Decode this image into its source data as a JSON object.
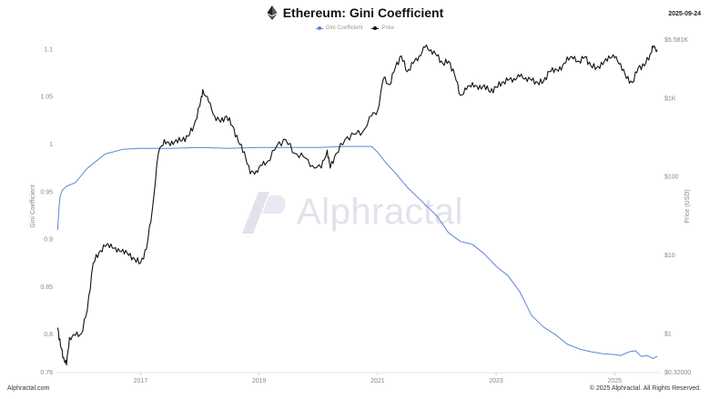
{
  "header": {
    "title": "Ethereum: Gini Coefficient",
    "date": "2025-09-24"
  },
  "legend": {
    "gini_label": "Gini Coefficient",
    "price_label": "Price"
  },
  "watermark": {
    "text": "Alphractal"
  },
  "footer": {
    "left": "Alphractal.com",
    "right": "© 2025 Alphractal. All Rights Reserved."
  },
  "colors": {
    "gini": "#5b86d6",
    "price": "#111111",
    "axis_text": "#888888"
  },
  "icons": {
    "title_icon": "ethereum-icon",
    "watermark_icon": "alphractal-logo-icon"
  },
  "chart_data": {
    "type": "line",
    "title": "Ethereum: Gini Coefficient",
    "x_ticks": [
      "2017",
      "2019",
      "2021",
      "2023",
      "2025"
    ],
    "x_range": [
      "2015-08",
      "2025-09"
    ],
    "y_left": {
      "label": "Gini Coefficient",
      "ticks": [
        "0.76",
        "0.8",
        "0.85",
        "0.9",
        "0.95",
        "1",
        "1.05",
        "1.1"
      ],
      "range": [
        0.76,
        1.11
      ]
    },
    "y_right": {
      "label": "Price (USD)",
      "scale": "log",
      "ticks": [
        "$0.32000",
        "$1",
        "$10",
        "$100",
        "$1K",
        "$5.581K"
      ],
      "range": [
        0.32,
        5581
      ]
    },
    "grid": false,
    "series": [
      {
        "name": "Gini Coefficient",
        "axis": "left",
        "x": [
          2015.6,
          2015.62,
          2015.64,
          2015.68,
          2015.75,
          2015.9,
          2016.1,
          2016.4,
          2016.7,
          2017.0,
          2017.5,
          2018.0,
          2018.5,
          2019.0,
          2019.5,
          2020.0,
          2020.5,
          2020.9,
          2021.0,
          2021.15,
          2021.3,
          2021.5,
          2021.75,
          2022.0,
          2022.2,
          2022.4,
          2022.6,
          2022.8,
          2023.0,
          2023.2,
          2023.4,
          2023.6,
          2023.8,
          2024.0,
          2024.2,
          2024.4,
          2024.6,
          2024.8,
          2025.0,
          2025.1,
          2025.25,
          2025.35,
          2025.45,
          2025.55,
          2025.65,
          2025.72
        ],
        "values": [
          0.91,
          0.93,
          0.945,
          0.952,
          0.956,
          0.96,
          0.975,
          0.99,
          0.995,
          0.996,
          0.996,
          0.997,
          0.996,
          0.997,
          0.997,
          0.997,
          0.998,
          0.998,
          0.992,
          0.98,
          0.97,
          0.955,
          0.94,
          0.925,
          0.907,
          0.898,
          0.895,
          0.885,
          0.872,
          0.862,
          0.845,
          0.82,
          0.808,
          0.8,
          0.79,
          0.785,
          0.782,
          0.78,
          0.779,
          0.778,
          0.782,
          0.783,
          0.777,
          0.778,
          0.775,
          0.777
        ]
      },
      {
        "name": "Price",
        "axis": "right",
        "x": [
          2015.6,
          2015.65,
          2015.7,
          2015.75,
          2015.8,
          2015.9,
          2016.0,
          2016.1,
          2016.2,
          2016.3,
          2016.4,
          2016.5,
          2016.6,
          2016.7,
          2016.8,
          2016.9,
          2017.0,
          2017.1,
          2017.2,
          2017.3,
          2017.4,
          2017.5,
          2017.6,
          2017.7,
          2017.8,
          2017.9,
          2018.0,
          2018.05,
          2018.15,
          2018.25,
          2018.35,
          2018.45,
          2018.55,
          2018.65,
          2018.75,
          2018.85,
          2018.95,
          2019.05,
          2019.15,
          2019.3,
          2019.45,
          2019.6,
          2019.75,
          2019.9,
          2020.05,
          2020.15,
          2020.2,
          2020.3,
          2020.45,
          2020.6,
          2020.75,
          2020.9,
          2021.0,
          2021.1,
          2021.2,
          2021.3,
          2021.4,
          2021.5,
          2021.6,
          2021.7,
          2021.8,
          2021.9,
          2022.0,
          2022.1,
          2022.2,
          2022.3,
          2022.4,
          2022.5,
          2022.6,
          2022.7,
          2022.8,
          2022.9,
          2023.0,
          2023.1,
          2023.2,
          2023.3,
          2023.4,
          2023.5,
          2023.6,
          2023.7,
          2023.8,
          2023.9,
          2024.0,
          2024.1,
          2024.2,
          2024.3,
          2024.4,
          2024.5,
          2024.6,
          2024.7,
          2024.8,
          2024.9,
          2025.0,
          2025.1,
          2025.2,
          2025.3,
          2025.4,
          2025.5,
          2025.6,
          2025.65,
          2025.72
        ],
        "values": [
          1.2,
          0.7,
          0.5,
          0.4,
          0.9,
          0.95,
          1.0,
          2.0,
          8.0,
          11,
          13,
          14,
          11,
          12,
          10,
          9,
          8,
          12,
          40,
          200,
          300,
          250,
          300,
          290,
          330,
          450,
          800,
          1300,
          900,
          600,
          500,
          600,
          450,
          280,
          210,
          110,
          120,
          140,
          160,
          250,
          300,
          200,
          180,
          140,
          130,
          220,
          130,
          200,
          300,
          350,
          380,
          600,
          700,
          1800,
          1500,
          2500,
          3500,
          2200,
          2800,
          3500,
          4500,
          4200,
          3500,
          2800,
          3000,
          2000,
          1100,
          1300,
          1600,
          1300,
          1500,
          1200,
          1400,
          1600,
          1700,
          1800,
          1900,
          1850,
          1700,
          1600,
          1650,
          2200,
          2400,
          2300,
          3400,
          3200,
          3000,
          3400,
          2600,
          2500,
          2700,
          3500,
          3300,
          2800,
          1800,
          1600,
          2500,
          2600,
          3700,
          4500,
          4200
        ]
      }
    ]
  }
}
